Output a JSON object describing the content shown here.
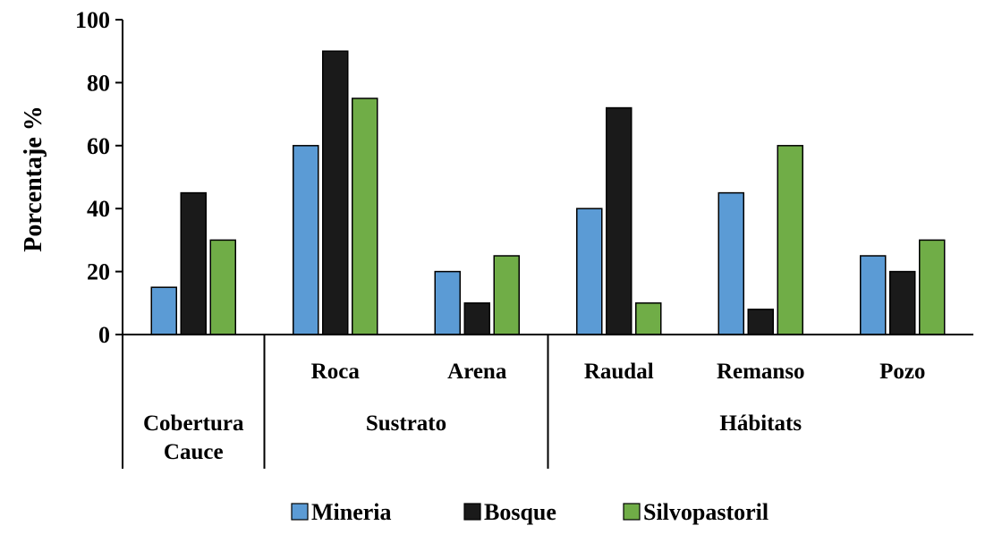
{
  "chart_data": {
    "type": "bar",
    "ylabel": "Porcentaje  %",
    "ylim": [
      0,
      100
    ],
    "yticks": [
      0,
      20,
      40,
      60,
      80,
      100
    ],
    "grid": false,
    "legend_position": "bottom",
    "categories": [
      "",
      "Roca",
      "Arena",
      "Raudal",
      "Remanso",
      "Pozo"
    ],
    "groups": [
      {
        "label_lines": [
          "Cobertura",
          "Cauce"
        ],
        "categories": [
          0
        ]
      },
      {
        "label_lines": [
          "Sustrato"
        ],
        "categories": [
          1,
          2
        ]
      },
      {
        "label_lines": [
          "Hábitats"
        ],
        "categories": [
          3,
          4,
          5
        ]
      }
    ],
    "series": [
      {
        "name": "Mineria",
        "color": "#5b9bd5",
        "values": [
          15,
          60,
          20,
          40,
          45,
          25
        ]
      },
      {
        "name": "Bosque",
        "color": "#1a1a1a",
        "values": [
          45,
          90,
          10,
          72,
          8,
          20
        ]
      },
      {
        "name": "Silvopastoril",
        "color": "#70ad47",
        "values": [
          30,
          75,
          25,
          10,
          60,
          30
        ]
      }
    ]
  }
}
